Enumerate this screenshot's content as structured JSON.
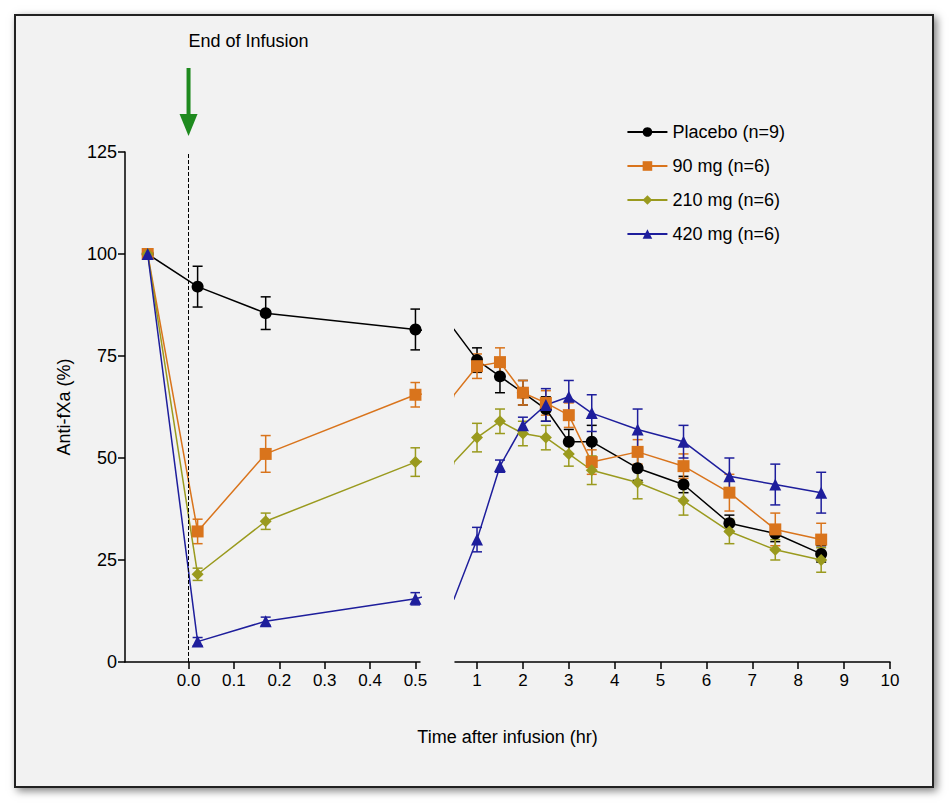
{
  "chart_data": {
    "type": "line",
    "ylabel": "Anti-fXa (%)",
    "xlabel": "Time after infusion (hr)",
    "annotation": {
      "text": "End of Infusion",
      "x": 0
    },
    "ylim": [
      0,
      125
    ],
    "yticks": [
      0,
      25,
      50,
      75,
      100,
      125
    ],
    "grid": false,
    "legend": "upper right",
    "panels": [
      {
        "xlim": [
          -0.14,
          0.51
        ],
        "xticks": [
          {
            "value": 0,
            "label": "0.0"
          },
          0.1,
          0.2,
          0.3,
          0.4,
          0.5
        ]
      },
      {
        "xlim": [
          0.52,
          10
        ],
        "xticks": [
          1,
          2,
          3,
          4,
          5,
          6,
          7,
          8,
          9,
          10
        ]
      }
    ],
    "x": [
      -0.09,
      0.02,
      0.17,
      0.5,
      1,
      1.5,
      2,
      2.5,
      3,
      3.5,
      4.5,
      5.5,
      6.5,
      7.5,
      8.5
    ],
    "series": [
      {
        "name": "Placebo (n=9)",
        "color": "#000000",
        "marker": "circle",
        "values": [
          100,
          92,
          85.5,
          81.5,
          74,
          70,
          66,
          62,
          54,
          54,
          47.5,
          43.5,
          34,
          31.5,
          26.5
        ],
        "errors": [
          0,
          5,
          4,
          5,
          3,
          4,
          3,
          3,
          3,
          4,
          3,
          2,
          2,
          2,
          2
        ]
      },
      {
        "name": "90 mg (n=6)",
        "color": "#d9741c",
        "marker": "square",
        "values": [
          100,
          32,
          51,
          65.5,
          72.5,
          73.5,
          66,
          63.5,
          60.5,
          49,
          51.5,
          48,
          41.5,
          32.5,
          30
        ],
        "errors": [
          0,
          3,
          4.5,
          3,
          3,
          3.5,
          3,
          3,
          3,
          3,
          3,
          3,
          4.5,
          4,
          4
        ]
      },
      {
        "name": "210 mg (n=6)",
        "color": "#9a9a1e",
        "marker": "diamond",
        "values": [
          100,
          21.5,
          34.5,
          49,
          55,
          59,
          56,
          55,
          51,
          47,
          44,
          39.5,
          32,
          27.5,
          25
        ],
        "errors": [
          0,
          1.5,
          2,
          3.5,
          3.5,
          3,
          3,
          3,
          3,
          3.5,
          4,
          3.5,
          3,
          2.5,
          3
        ]
      },
      {
        "name": "420 mg (n=6)",
        "color": "#1e1e9c",
        "marker": "triangle",
        "values": [
          100,
          5,
          10,
          15.5,
          30,
          48,
          58,
          63,
          65,
          61,
          57,
          54,
          45.5,
          43.5,
          41.5
        ],
        "errors": [
          0,
          1,
          1,
          1.5,
          3,
          1.5,
          2,
          4,
          4,
          4.5,
          5,
          4,
          4.5,
          5,
          5
        ]
      }
    ]
  }
}
